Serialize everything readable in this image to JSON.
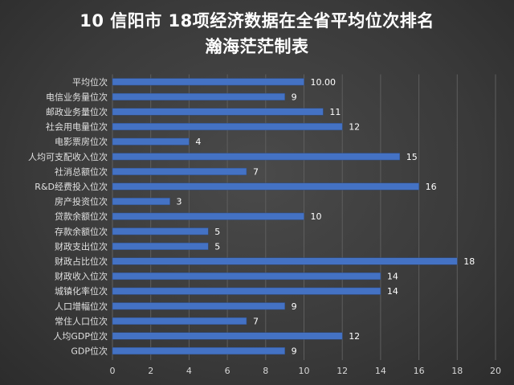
{
  "chart_data": {
    "type": "bar",
    "orientation": "horizontal",
    "title": "10 信阳市  18项经济数据在全省平均位次排名",
    "subtitle": "瀚海茫茫制表",
    "categories": [
      "平均位次",
      "电信业务量位次",
      "邮政业务量位次",
      "社会用电量位次",
      "电影票房位次",
      "人均可支配收入位次",
      "社消总额位次",
      "R&D经费投入位次",
      "房产投资位次",
      "贷款余额位次",
      "存款余额位次",
      "财政支出位次",
      "财政占比位次",
      "财政收入位次",
      "城镇化率位次",
      "人口增幅位次",
      "常住人口位次",
      "人均GDP位次",
      "GDP位次"
    ],
    "values": [
      10,
      9,
      11,
      12,
      4,
      15,
      7,
      16,
      3,
      10,
      5,
      5,
      18,
      14,
      14,
      9,
      7,
      12,
      9
    ],
    "value_labels": [
      "10.00",
      "9",
      "11",
      "12",
      "4",
      "15",
      "7",
      "16",
      "3",
      "10",
      "5",
      "5",
      "18",
      "14",
      "14",
      "9",
      "7",
      "12",
      "9"
    ],
    "xlim": [
      0,
      20
    ],
    "xticks": [
      0,
      2,
      4,
      6,
      8,
      10,
      12,
      14,
      16,
      18,
      20
    ],
    "bar_color": "#4472c4",
    "grid": true,
    "legend": "none"
  }
}
